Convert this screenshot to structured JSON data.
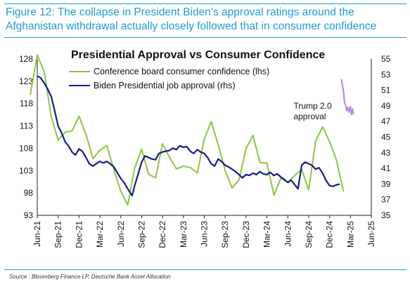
{
  "figure_title": "Figure 12: The collapse in President Biden’s approval ratings around the Afghanistan withdrawal actually closely followed that in consumer confidence",
  "source": "Source : Bloomberg Finance LP, Deutsche Bank Asset Allocation",
  "chart_data": {
    "type": "line",
    "title": "Presidential Approval vs Consumer Confidence",
    "x_axis": {
      "range": [
        "2021-06",
        "2025-06"
      ],
      "tick_labels": [
        "Jun-21",
        "Sep-21",
        "Dec-21",
        "Mar-22",
        "Jun-22",
        "Sep-22",
        "Dec-22",
        "Mar-23",
        "Jun-23",
        "Sep-23",
        "Dec-23",
        "Mar-24",
        "Jun-24",
        "Sep-24",
        "Dec-24",
        "Mar-25",
        "Jun-25"
      ]
    },
    "y_left": {
      "range": [
        93,
        128
      ],
      "ticks": [
        93,
        98,
        103,
        108,
        113,
        118,
        123,
        128
      ]
    },
    "y_right": {
      "range": [
        35,
        55
      ],
      "ticks": [
        35,
        37,
        39,
        41,
        43,
        45,
        47,
        49,
        51,
        53,
        55
      ]
    },
    "grid": false,
    "legend_position": "top-left",
    "series": [
      {
        "name": "Conference board consumer confidence (lhs)",
        "axis": "left",
        "color": "#8dc63f",
        "points": [
          [
            "2021-05-01",
            120
          ],
          [
            "2021-06-01",
            128.9
          ],
          [
            "2021-07-01",
            125.1
          ],
          [
            "2021-08-01",
            115.2
          ],
          [
            "2021-09-01",
            109.8
          ],
          [
            "2021-10-01",
            111.6
          ],
          [
            "2021-11-01",
            111.9
          ],
          [
            "2021-12-01",
            115.2
          ],
          [
            "2022-01-01",
            111.1
          ],
          [
            "2022-02-01",
            105.7
          ],
          [
            "2022-03-01",
            107.6
          ],
          [
            "2022-04-01",
            108.6
          ],
          [
            "2022-05-01",
            103.2
          ],
          [
            "2022-06-01",
            98.4
          ],
          [
            "2022-07-01",
            95.3
          ],
          [
            "2022-08-01",
            103.6
          ],
          [
            "2022-09-01",
            107.8
          ],
          [
            "2022-10-01",
            102.2
          ],
          [
            "2022-11-01",
            101.4
          ],
          [
            "2022-12-01",
            109
          ],
          [
            "2023-01-01",
            106
          ],
          [
            "2023-02-01",
            103.4
          ],
          [
            "2023-03-01",
            104
          ],
          [
            "2023-04-01",
            103.7
          ],
          [
            "2023-05-01",
            102.5
          ],
          [
            "2023-06-01",
            110.1
          ],
          [
            "2023-07-01",
            114
          ],
          [
            "2023-08-01",
            108.7
          ],
          [
            "2023-09-01",
            103
          ],
          [
            "2023-10-01",
            99.1
          ],
          [
            "2023-11-01",
            101
          ],
          [
            "2023-12-01",
            108
          ],
          [
            "2024-01-01",
            110.9
          ],
          [
            "2024-02-01",
            104.8
          ],
          [
            "2024-03-01",
            104.7
          ],
          [
            "2024-04-01",
            97.5
          ],
          [
            "2024-05-01",
            101.3
          ],
          [
            "2024-06-01",
            100.4
          ],
          [
            "2024-07-01",
            101.9
          ],
          [
            "2024-08-01",
            103.3
          ],
          [
            "2024-09-01",
            98.7
          ],
          [
            "2024-10-01",
            109.6
          ],
          [
            "2024-11-01",
            112.8
          ],
          [
            "2024-12-01",
            109.5
          ],
          [
            "2025-01-01",
            105.3
          ],
          [
            "2025-02-01",
            98.3
          ]
        ]
      },
      {
        "name": "Biden Presidential job approval (rhs)",
        "axis": "right",
        "color": "#0f1f8c",
        "points": [
          [
            "2021-06-01",
            52.8
          ],
          [
            "2021-06-15",
            52.6
          ],
          [
            "2021-07-01",
            51.9
          ],
          [
            "2021-07-15",
            51.2
          ],
          [
            "2021-08-01",
            50.2
          ],
          [
            "2021-08-15",
            48.5
          ],
          [
            "2021-09-01",
            46.4
          ],
          [
            "2021-09-15",
            45.6
          ],
          [
            "2021-10-01",
            44.4
          ],
          [
            "2021-10-15",
            43.9
          ],
          [
            "2021-11-01",
            43.1
          ],
          [
            "2021-11-15",
            42.7
          ],
          [
            "2021-12-01",
            43.5
          ],
          [
            "2021-12-15",
            43.2
          ],
          [
            "2022-01-01",
            42.4
          ],
          [
            "2022-01-15",
            41.6
          ],
          [
            "2022-02-01",
            41.3
          ],
          [
            "2022-02-15",
            41.6
          ],
          [
            "2022-03-01",
            41.9
          ],
          [
            "2022-03-15",
            41.7
          ],
          [
            "2022-04-01",
            41.9
          ],
          [
            "2022-04-15",
            41.6
          ],
          [
            "2022-05-01",
            41.2
          ],
          [
            "2022-05-15",
            40.5
          ],
          [
            "2022-06-01",
            39.7
          ],
          [
            "2022-06-15",
            39.2
          ],
          [
            "2022-07-01",
            38.4
          ],
          [
            "2022-07-20",
            37.5
          ],
          [
            "2022-08-01",
            38.8
          ],
          [
            "2022-08-15",
            40.2
          ],
          [
            "2022-09-01",
            41.8
          ],
          [
            "2022-09-15",
            42.6
          ],
          [
            "2022-10-01",
            42.4
          ],
          [
            "2022-10-15",
            42.2
          ],
          [
            "2022-11-01",
            42.1
          ],
          [
            "2022-11-15",
            42.9
          ],
          [
            "2022-12-01",
            43.1
          ],
          [
            "2022-12-15",
            43.2
          ],
          [
            "2023-01-01",
            43.3
          ],
          [
            "2023-01-15",
            43.6
          ],
          [
            "2023-02-01",
            43.4
          ],
          [
            "2023-02-15",
            43.9
          ],
          [
            "2023-03-01",
            43.7
          ],
          [
            "2023-03-15",
            43.8
          ],
          [
            "2023-04-01",
            43.2
          ],
          [
            "2023-04-15",
            42.9
          ],
          [
            "2023-05-01",
            43.4
          ],
          [
            "2023-05-15",
            43.1
          ],
          [
            "2023-06-01",
            42.9
          ],
          [
            "2023-06-15",
            42.4
          ],
          [
            "2023-07-01",
            41.6
          ],
          [
            "2023-07-15",
            41.3
          ],
          [
            "2023-08-01",
            42.2
          ],
          [
            "2023-08-15",
            41.9
          ],
          [
            "2023-09-01",
            41.4
          ],
          [
            "2023-09-15",
            41.2
          ],
          [
            "2023-10-01",
            40.9
          ],
          [
            "2023-10-15",
            40.6
          ],
          [
            "2023-11-01",
            40.2
          ],
          [
            "2023-11-15",
            39.8
          ],
          [
            "2023-12-01",
            40.2
          ],
          [
            "2023-12-15",
            40.1
          ],
          [
            "2024-01-01",
            40.4
          ],
          [
            "2024-01-15",
            40.2
          ],
          [
            "2024-02-01",
            40.6
          ],
          [
            "2024-02-15",
            40.3
          ],
          [
            "2024-03-01",
            40.2
          ],
          [
            "2024-03-15",
            40.5
          ],
          [
            "2024-04-01",
            40.1
          ],
          [
            "2024-04-15",
            40.3
          ],
          [
            "2024-05-01",
            39.9
          ],
          [
            "2024-05-15",
            39.6
          ],
          [
            "2024-06-01",
            39.2
          ],
          [
            "2024-06-15",
            39.5
          ],
          [
            "2024-07-01",
            38.9
          ],
          [
            "2024-07-15",
            38.4
          ],
          [
            "2024-08-01",
            41.4
          ],
          [
            "2024-08-15",
            41.8
          ],
          [
            "2024-09-01",
            41.6
          ],
          [
            "2024-09-15",
            41.4
          ],
          [
            "2024-10-01",
            40.9
          ],
          [
            "2024-10-15",
            41.1
          ],
          [
            "2024-11-01",
            40.4
          ],
          [
            "2024-11-15",
            39.5
          ],
          [
            "2024-12-01",
            38.8
          ],
          [
            "2024-12-15",
            38.7
          ],
          [
            "2025-01-01",
            38.9
          ],
          [
            "2025-01-15",
            39.0
          ]
        ]
      },
      {
        "name": "Trump 2.0 approval",
        "axis": "right",
        "color": "#b48be8",
        "label_position": "left-of-line",
        "points": [
          [
            "2025-01-22",
            52.4
          ],
          [
            "2025-01-27",
            51.5
          ],
          [
            "2025-02-01",
            50.9
          ],
          [
            "2025-02-05",
            49.6
          ],
          [
            "2025-02-10",
            49.1
          ],
          [
            "2025-02-15",
            48.4
          ],
          [
            "2025-02-20",
            48.8
          ],
          [
            "2025-02-25",
            48.2
          ],
          [
            "2025-03-01",
            48.9
          ],
          [
            "2025-03-05",
            47.9
          ],
          [
            "2025-03-10",
            48.6
          ],
          [
            "2025-03-15",
            47.9
          ]
        ]
      }
    ]
  }
}
